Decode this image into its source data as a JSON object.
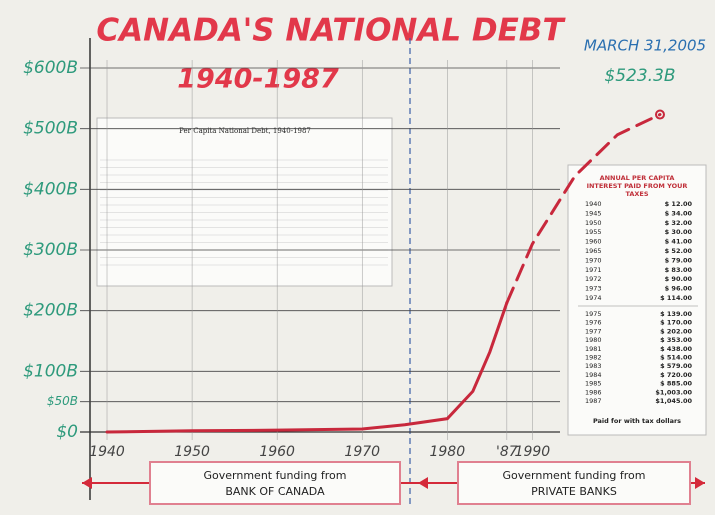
{
  "chart_data": {
    "type": "line",
    "title": "CANADA'S NATIONAL DEBT",
    "subtitle": "1940-1987",
    "annotations": [
      "MARCH 31,2005",
      "$523.3B"
    ],
    "series": [
      {
        "color": "#c8283c",
        "style": "solid",
        "x": [
          1940,
          1950,
          1960,
          1970,
          1975,
          1980,
          1983,
          1985,
          1987
        ],
        "values": [
          0,
          2,
          3,
          5,
          12,
          22,
          67,
          132,
          213
        ]
      },
      {
        "color": "#c8283c",
        "style": "dashed",
        "x": [
          1987,
          1990,
          1995,
          2000,
          2005
        ],
        "values": [
          213,
          310,
          422,
          490,
          523.3
        ]
      }
    ],
    "xlim": [
      1938,
      2007
    ],
    "xticks": [
      1940,
      1950,
      1960,
      1970,
      1980,
      {
        "value": 1987,
        "label": "'87"
      },
      1990
    ],
    "ylim": [
      0,
      600
    ],
    "yticks": [
      {
        "value": 0,
        "label": "$0"
      },
      {
        "value": 50,
        "label": "$50B"
      },
      {
        "value": 100,
        "label": "$100B"
      },
      {
        "value": 200,
        "label": "$200B"
      },
      {
        "value": 300,
        "label": "$300B"
      },
      {
        "value": 400,
        "label": "$400B"
      },
      {
        "value": 500,
        "label": "$500B"
      },
      {
        "value": 600,
        "label": "$600B"
      }
    ],
    "grid": true
  },
  "funding": [
    {
      "line1": "Government funding from",
      "line2": "BANK OF CANADA"
    },
    {
      "line1": "Government funding from",
      "line2": "PRIVATE BANKS"
    }
  ],
  "debt_table": {
    "title": "Per Capita National Debt, 1940-1987"
  },
  "interest_table": {
    "title": [
      "ANNUAL PER CAPITA",
      "INTEREST PAID FROM YOUR",
      "TAXES"
    ],
    "rows": [
      [
        "1940",
        "$ 12.00"
      ],
      [
        "1945",
        "$ 34.00"
      ],
      [
        "1950",
        "$ 32.00"
      ],
      [
        "1955",
        "$ 30.00"
      ],
      [
        "1960",
        "$ 41.00"
      ],
      [
        "1965",
        "$ 52.00"
      ],
      [
        "1970",
        "$ 79.00"
      ],
      [
        "1971",
        "$ 83.00"
      ],
      [
        "1972",
        "$ 90.00"
      ],
      [
        "1973",
        "$ 96.00"
      ],
      [
        "1974",
        "$ 114.00"
      ],
      [
        "1975",
        "$ 139.00"
      ],
      [
        "1976",
        "$ 170.00"
      ],
      [
        "1977",
        "$ 202.00"
      ],
      [
        "1980",
        "$ 353.00"
      ],
      [
        "1981",
        "$ 438.00"
      ],
      [
        "1982",
        "$ 514.00"
      ],
      [
        "1983",
        "$ 579.00"
      ],
      [
        "1984",
        "$ 720.00"
      ],
      [
        "1985",
        "$ 885.00"
      ],
      [
        "1986",
        "$1,003.00"
      ],
      [
        "1987",
        "$1,045.00"
      ]
    ],
    "footer": "Paid for with tax dollars"
  }
}
